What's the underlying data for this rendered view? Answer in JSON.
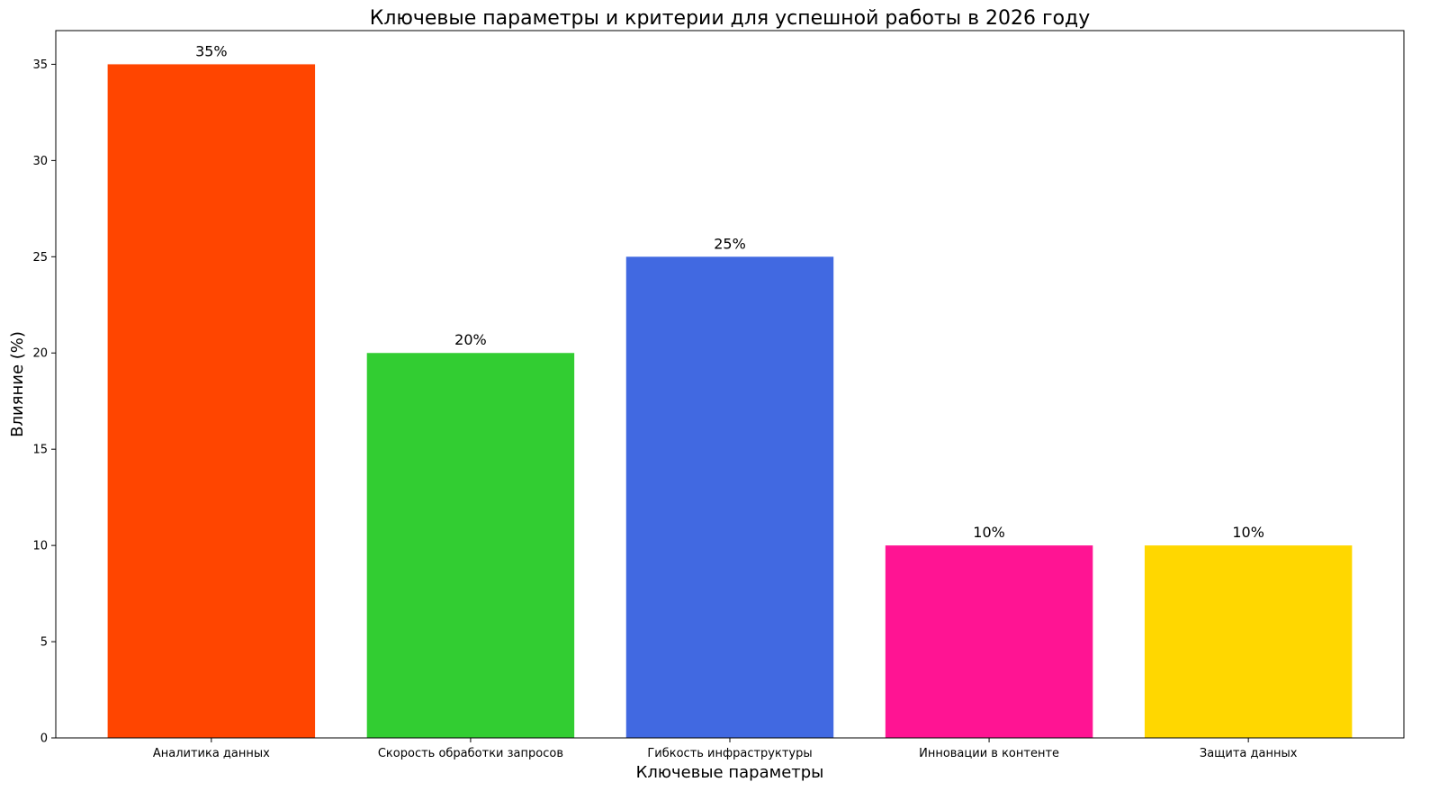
{
  "chart_data": {
    "type": "bar",
    "title": "Ключевые параметры и критерии для успешной работы в 2026 году",
    "xlabel": "Ключевые параметры",
    "ylabel": "Влияние (%)",
    "categories": [
      "Аналитика данных",
      "Скорость обработки запросов",
      "Гибкость инфраструктуры",
      "Инновации в контенте",
      "Защита данных"
    ],
    "values": [
      35,
      20,
      25,
      10,
      10
    ],
    "value_labels": [
      "35%",
      "20%",
      "25%",
      "10%",
      "10%"
    ],
    "colors": [
      "#ff4500",
      "#32cd32",
      "#4169e1",
      "#ff1493",
      "#ffd700"
    ],
    "ylim": [
      0,
      36.75
    ],
    "yticks": [
      0,
      5,
      10,
      15,
      20,
      25,
      30,
      35
    ],
    "grid": false,
    "legend": "none"
  }
}
